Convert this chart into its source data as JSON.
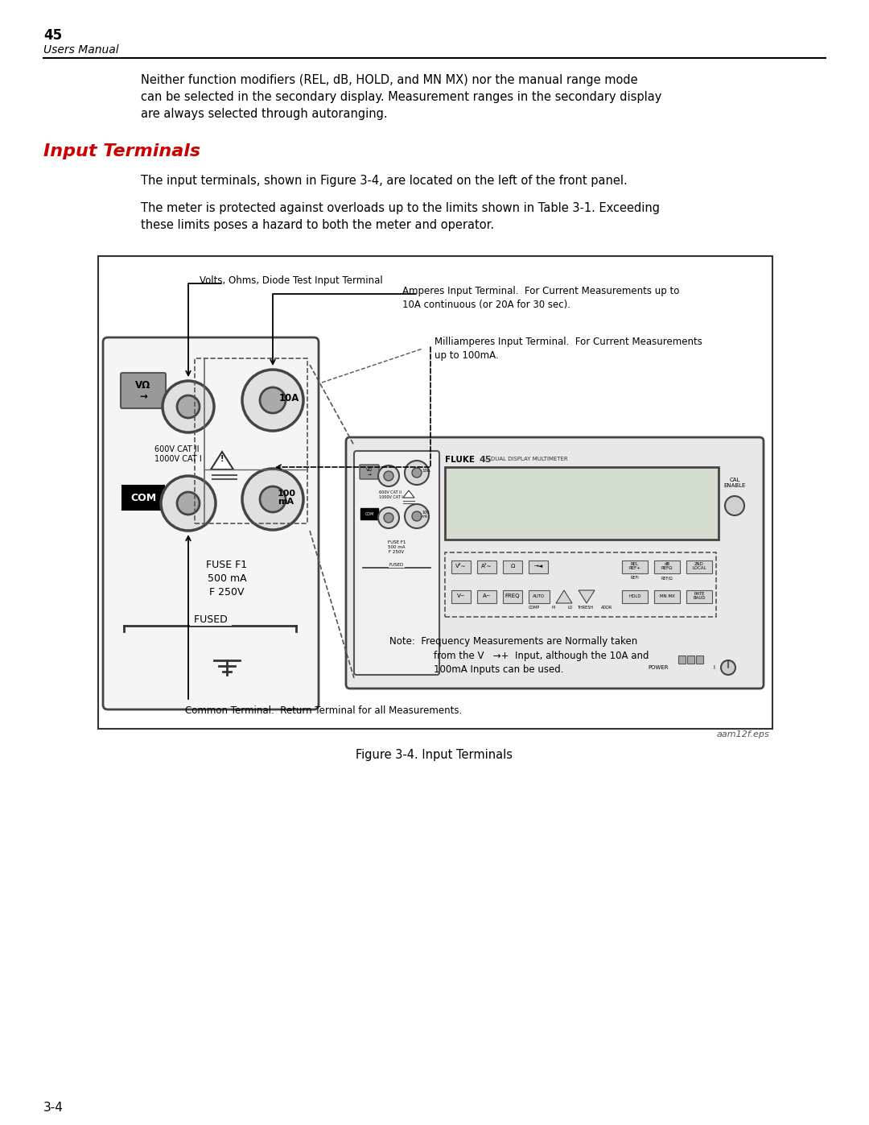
{
  "page_number": "45",
  "page_subtitle": "Users Manual",
  "bg_color": "#ffffff",
  "text_color": "#000000",
  "section_title": "Input Terminals",
  "section_title_color": "#cc0000",
  "para1": "Neither function modifiers (REL, dB, HOLD, and MN MX) nor the manual range mode\ncan be selected in the secondary display. Measurement ranges in the secondary display\nare always selected through autoranging.",
  "para2": "The input terminals, shown in Figure 3-4, are located on the left of the front panel.",
  "para3": "The meter is protected against overloads up to the limits shown in Table 3-1. Exceeding\nthese limits poses a hazard to both the meter and operator.",
  "figure_caption": "Figure 3-4. Input Terminals",
  "figure_label": "aam12f.eps",
  "footer_text": "3-4",
  "callout_1": "Volts, Ohms, Diode Test Input Terminal",
  "callout_2": "Amperes Input Terminal.  For Current Measurements up to\n10A continuous (or 20A for 30 sec).",
  "callout_3": "Milliamperes Input Terminal.  For Current Measurements\nup to 100mA.",
  "callout_4_line1": "Note:  Frequency Measurements are Normally taken",
  "callout_4_line2": "from the V   →+  Input, although the 10A and",
  "callout_4_line3": "100mA Inputs can be used.",
  "callout_5": "Common Terminal.  Return Terminal for all Measurements.",
  "font_family": "DejaVu Sans"
}
